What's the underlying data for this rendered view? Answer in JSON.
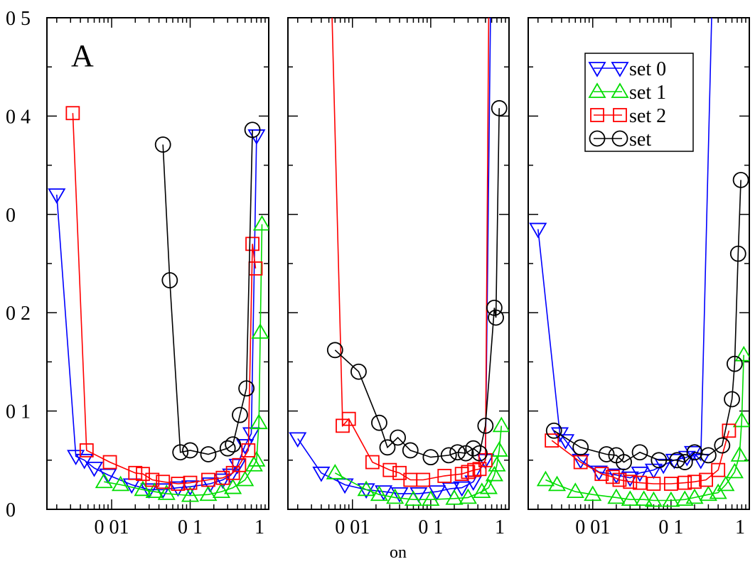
{
  "chart_data": {
    "type": "line",
    "xlabel": "on",
    "ylabel": "",
    "x_scale": "log",
    "xlim": [
      0.0015,
      1
    ],
    "ylim": [
      0,
      0.5
    ],
    "y_tick_labels": [
      "0",
      "0 1",
      "0 2",
      "0",
      "0 4",
      "0 5"
    ],
    "x_tick_labels": [
      "0 01",
      "0 1",
      "1"
    ],
    "colors": {
      "set 0": "#0000ff",
      "set 1": "#00dd00",
      "set 2": "#ff0000",
      "set": "#000000"
    },
    "legend": {
      "panel": 2,
      "position": "top-right",
      "entries": [
        "set 0",
        "set 1",
        "set 2",
        "set"
      ]
    },
    "panels": [
      {
        "label": "A",
        "series": [
          {
            "name": "set 0",
            "marker": "triangle-down",
            "x": [
              0.002,
              0.0035,
              0.0045,
              0.006,
              0.009,
              0.018,
              0.03,
              0.045,
              0.07,
              0.1,
              0.18,
              0.26,
              0.33,
              0.4,
              0.5,
              0.6,
              0.7
            ],
            "y": [
              0.32,
              0.054,
              0.05,
              0.042,
              0.035,
              0.025,
              0.02,
              0.02,
              0.022,
              0.023,
              0.026,
              0.03,
              0.035,
              0.045,
              0.065,
              0.077,
              0.38
            ]
          },
          {
            "name": "set 1",
            "marker": "triangle-up",
            "x": [
              0.008,
              0.013,
              0.025,
              0.035,
              0.05,
              0.1,
              0.17,
              0.25,
              0.35,
              0.5,
              0.65,
              0.7,
              0.75,
              0.78,
              0.82
            ],
            "y": [
              0.028,
              0.025,
              0.02,
              0.018,
              0.016,
              0.014,
              0.015,
              0.018,
              0.022,
              0.03,
              0.045,
              0.05,
              0.088,
              0.18,
              0.29
            ]
          },
          {
            "name": "set 2",
            "marker": "square",
            "x": [
              0.0032,
              0.0048,
              0.0095,
              0.02,
              0.025,
              0.033,
              0.045,
              0.07,
              0.1,
              0.17,
              0.26,
              0.35,
              0.42,
              0.55,
              0.62,
              0.68
            ],
            "y": [
              0.403,
              0.06,
              0.048,
              0.037,
              0.036,
              0.03,
              0.028,
              0.026,
              0.027,
              0.03,
              0.032,
              0.037,
              0.045,
              0.06,
              0.27,
              0.245
            ]
          },
          {
            "name": "set",
            "marker": "circle",
            "x": [
              0.045,
              0.055,
              0.075,
              0.1,
              0.17,
              0.3,
              0.35,
              0.43,
              0.52,
              0.62
            ],
            "y": [
              0.371,
              0.233,
              0.058,
              0.06,
              0.056,
              0.062,
              0.066,
              0.096,
              0.123,
              0.386
            ]
          }
        ]
      },
      {
        "label": "",
        "series": [
          {
            "name": "set 0",
            "marker": "triangle-down",
            "x": [
              0.002,
              0.004,
              0.008,
              0.015,
              0.025,
              0.04,
              0.07,
              0.12,
              0.18,
              0.25,
              0.35,
              0.5,
              0.58
            ],
            "y": [
              0.072,
              0.037,
              0.025,
              0.02,
              0.018,
              0.016,
              0.016,
              0.018,
              0.021,
              0.022,
              0.028,
              0.05,
              0.5
            ]
          },
          {
            "name": "set 1",
            "marker": "triangle-up",
            "x": [
              0.006,
              0.015,
              0.022,
              0.035,
              0.06,
              0.1,
              0.2,
              0.3,
              0.45,
              0.55,
              0.65,
              0.7,
              0.75,
              0.8
            ],
            "y": [
              0.037,
              0.02,
              0.015,
              0.012,
              0.01,
              0.01,
              0.011,
              0.012,
              0.018,
              0.022,
              0.035,
              0.045,
              0.06,
              0.085
            ]
          },
          {
            "name": "set 2",
            "marker": "square",
            "x": [
              0.0055,
              0.0075,
              0.009,
              0.018,
              0.03,
              0.04,
              0.055,
              0.08,
              0.15,
              0.25,
              0.3,
              0.36,
              0.42,
              0.5,
              0.55
            ],
            "y": [
              0.5,
              0.085,
              0.092,
              0.048,
              0.04,
              0.037,
              0.03,
              0.03,
              0.034,
              0.036,
              0.038,
              0.04,
              0.041,
              0.05,
              0.5
            ]
          },
          {
            "name": "set",
            "marker": "circle",
            "x": [
              0.006,
              0.012,
              0.022,
              0.028,
              0.038,
              0.055,
              0.1,
              0.17,
              0.22,
              0.28,
              0.35,
              0.42,
              0.5,
              0.65,
              0.68,
              0.75
            ],
            "y": [
              0.162,
              0.14,
              0.088,
              0.063,
              0.073,
              0.06,
              0.053,
              0.055,
              0.058,
              0.057,
              0.062,
              0.057,
              0.085,
              0.205,
              0.195,
              0.408
            ]
          }
        ]
      },
      {
        "label": "",
        "series": [
          {
            "name": "set 0",
            "marker": "triangle-down",
            "x": [
              0.002,
              0.0038,
              0.0045,
              0.007,
              0.012,
              0.02,
              0.03,
              0.04,
              0.06,
              0.08,
              0.11,
              0.16,
              0.19,
              0.24,
              0.33
            ],
            "y": [
              0.285,
              0.077,
              0.07,
              0.05,
              0.038,
              0.035,
              0.032,
              0.037,
              0.04,
              0.045,
              0.05,
              0.053,
              0.058,
              0.05,
              0.5
            ]
          },
          {
            "name": "set 1",
            "marker": "triangle-up",
            "x": [
              0.0025,
              0.0035,
              0.006,
              0.01,
              0.02,
              0.03,
              0.045,
              0.06,
              0.1,
              0.15,
              0.2,
              0.3,
              0.4,
              0.5,
              0.65,
              0.75,
              0.8,
              0.85
            ],
            "y": [
              0.03,
              0.025,
              0.018,
              0.015,
              0.012,
              0.01,
              0.01,
              0.009,
              0.009,
              0.01,
              0.012,
              0.015,
              0.017,
              0.025,
              0.038,
              0.055,
              0.09,
              0.157
            ]
          },
          {
            "name": "set 2",
            "marker": "square",
            "x": [
              0.003,
              0.007,
              0.013,
              0.018,
              0.022,
              0.03,
              0.04,
              0.06,
              0.1,
              0.15,
              0.2,
              0.28,
              0.4,
              0.55
            ],
            "y": [
              0.07,
              0.048,
              0.036,
              0.033,
              0.03,
              0.028,
              0.027,
              0.026,
              0.026,
              0.027,
              0.028,
              0.03,
              0.04,
              0.08
            ]
          },
          {
            "name": "set",
            "marker": "circle",
            "x": [
              0.0032,
              0.007,
              0.015,
              0.02,
              0.025,
              0.04,
              0.07,
              0.12,
              0.15,
              0.2,
              0.3,
              0.45,
              0.6,
              0.65,
              0.72,
              0.78
            ],
            "y": [
              0.08,
              0.063,
              0.056,
              0.055,
              0.048,
              0.058,
              0.05,
              0.05,
              0.048,
              0.058,
              0.055,
              0.065,
              0.112,
              0.148,
              0.26,
              0.335
            ]
          }
        ]
      }
    ]
  }
}
